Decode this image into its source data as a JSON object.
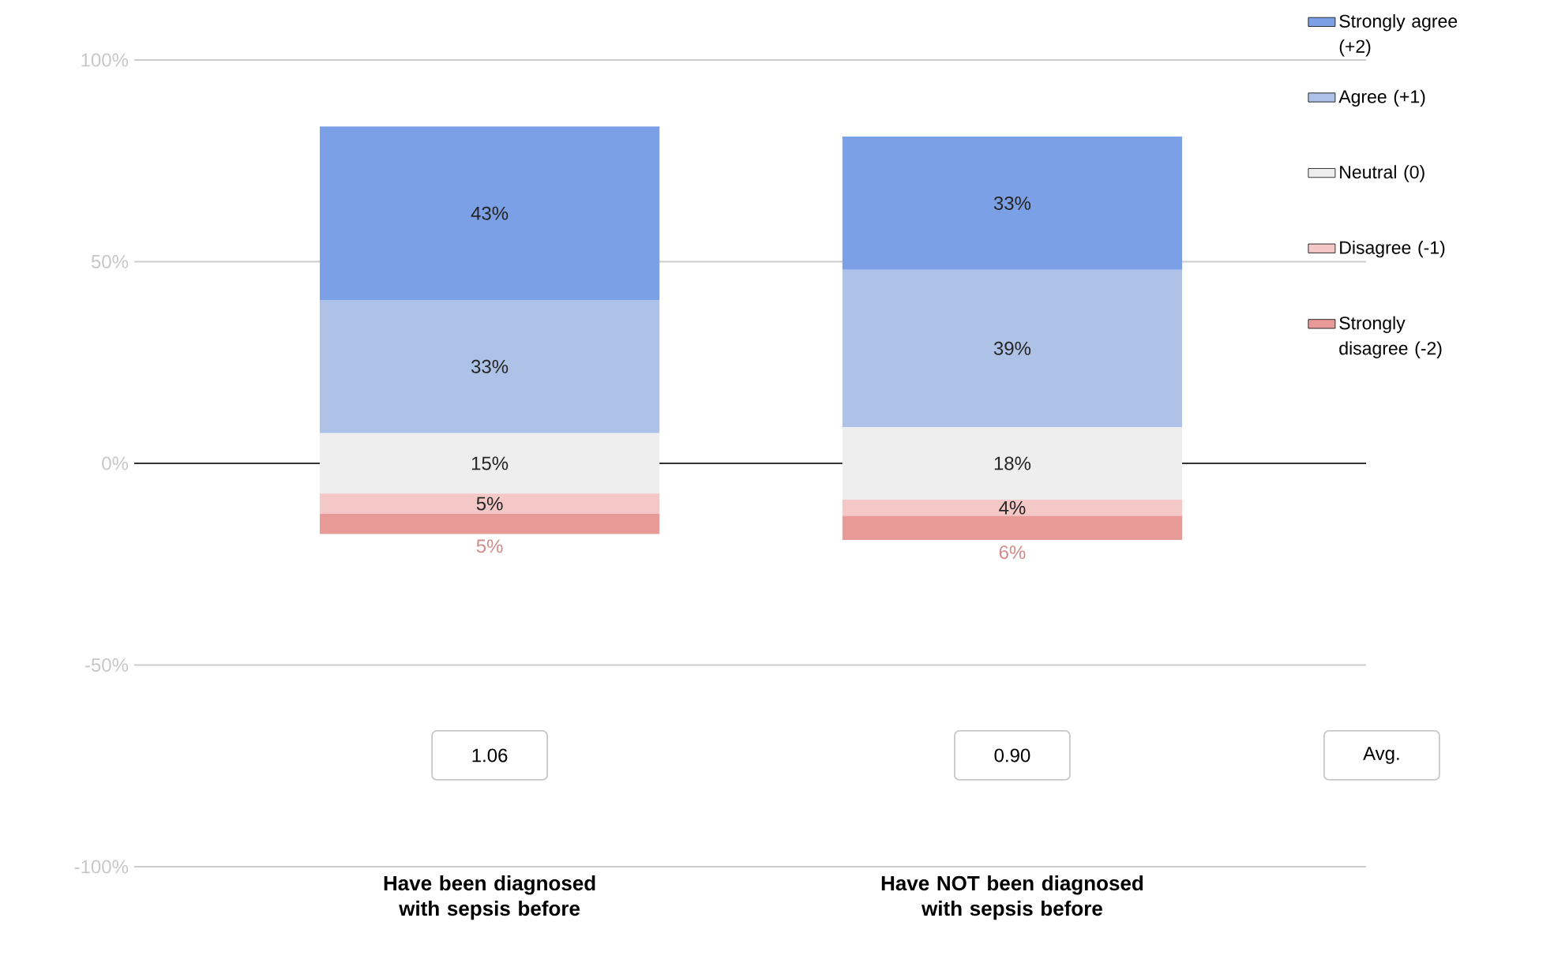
{
  "chart_data": {
    "type": "bar",
    "categories": [
      "Have been diagnosed with sepsis before",
      "Have NOT been diagnosed with sepsis before"
    ],
    "series": [
      {
        "name": "Strongly agree (+2)",
        "color": "#7ba0e6",
        "values": [
          43,
          33
        ],
        "base": [
          40.5,
          48
        ],
        "value_labels": [
          "43%",
          "33%"
        ]
      },
      {
        "name": "Agree (+1)",
        "color": "#adc2e6",
        "values": [
          33,
          39
        ],
        "base": [
          7.5,
          9
        ],
        "value_labels": [
          "33%",
          "39%"
        ]
      },
      {
        "name": "Neutral (0)",
        "color": "#eeeeee",
        "values": [
          15,
          18
        ],
        "base": [
          -7.5,
          -9
        ],
        "value_labels": [
          "15%",
          "18%"
        ]
      },
      {
        "name": "Disagree (-1)",
        "color": "#f4c8c6",
        "values": [
          5,
          4
        ],
        "base": [
          -12.5,
          -13
        ],
        "value_labels": [
          "5%",
          "4%"
        ]
      },
      {
        "name": "Strongly disagree (-2)",
        "color": "#e89a98",
        "values": [
          5,
          6
        ],
        "base": [
          -17.5,
          -19
        ],
        "value_labels": [
          "5%",
          "6%"
        ]
      }
    ],
    "ylim": [
      -100,
      100
    ],
    "yticks": [
      {
        "value": -100,
        "label": "-100%"
      },
      {
        "value": -50,
        "label": "-50%"
      },
      {
        "value": 0,
        "label": "0%"
      },
      {
        "value": 50,
        "label": "50%"
      },
      {
        "value": 100,
        "label": "100%"
      }
    ],
    "grid": "y",
    "legend": "right",
    "ref_lines": [
      {
        "axis": "y",
        "value": 0,
        "color": "#333333"
      }
    ],
    "annotations": [
      "1.06",
      "0.90",
      "Avg."
    ]
  }
}
